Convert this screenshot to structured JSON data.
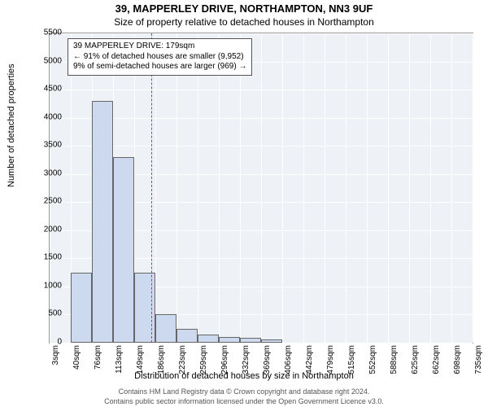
{
  "title_main": "39, MAPPERLEY DRIVE, NORTHAMPTON, NN3 9UF",
  "title_sub": "Size of property relative to detached houses in Northampton",
  "y_axis_label": "Number of detached properties",
  "x_axis_label": "Distribution of detached houses by size in Northampton",
  "footer1": "Contains HM Land Registry data © Crown copyright and database right 2024.",
  "footer2": "Contains public sector information licensed under the Open Government Licence v3.0.",
  "chart": {
    "type": "histogram",
    "background_color": "#eef2f6",
    "grid_color": "#ffffff",
    "bar_fill": "#cdd9ee",
    "bar_edge": "#666666",
    "ref_line_color": "#d33",
    "ylim": [
      0,
      5500
    ],
    "yticks": [
      0,
      500,
      1000,
      1500,
      2000,
      2500,
      3000,
      3500,
      4000,
      4500,
      5000,
      5500
    ],
    "xticks": [
      "3sqm",
      "40sqm",
      "76sqm",
      "113sqm",
      "149sqm",
      "186sqm",
      "223sqm",
      "259sqm",
      "296sqm",
      "332sqm",
      "369sqm",
      "406sqm",
      "442sqm",
      "479sqm",
      "515sqm",
      "552sqm",
      "588sqm",
      "625sqm",
      "662sqm",
      "698sqm",
      "735sqm"
    ],
    "values": [
      0,
      1250,
      4300,
      3300,
      1250,
      500,
      250,
      150,
      100,
      80,
      60,
      0,
      0,
      0,
      0,
      0,
      0,
      0,
      0,
      0
    ],
    "ref_value_sqm": 179,
    "x_min": 3,
    "x_max": 735,
    "info_box": {
      "line1": "39 MAPPERLEY DRIVE: 179sqm",
      "line2": "← 91% of detached houses are smaller (9,952)",
      "line3": "9% of semi-detached houses are larger (969) →"
    }
  }
}
